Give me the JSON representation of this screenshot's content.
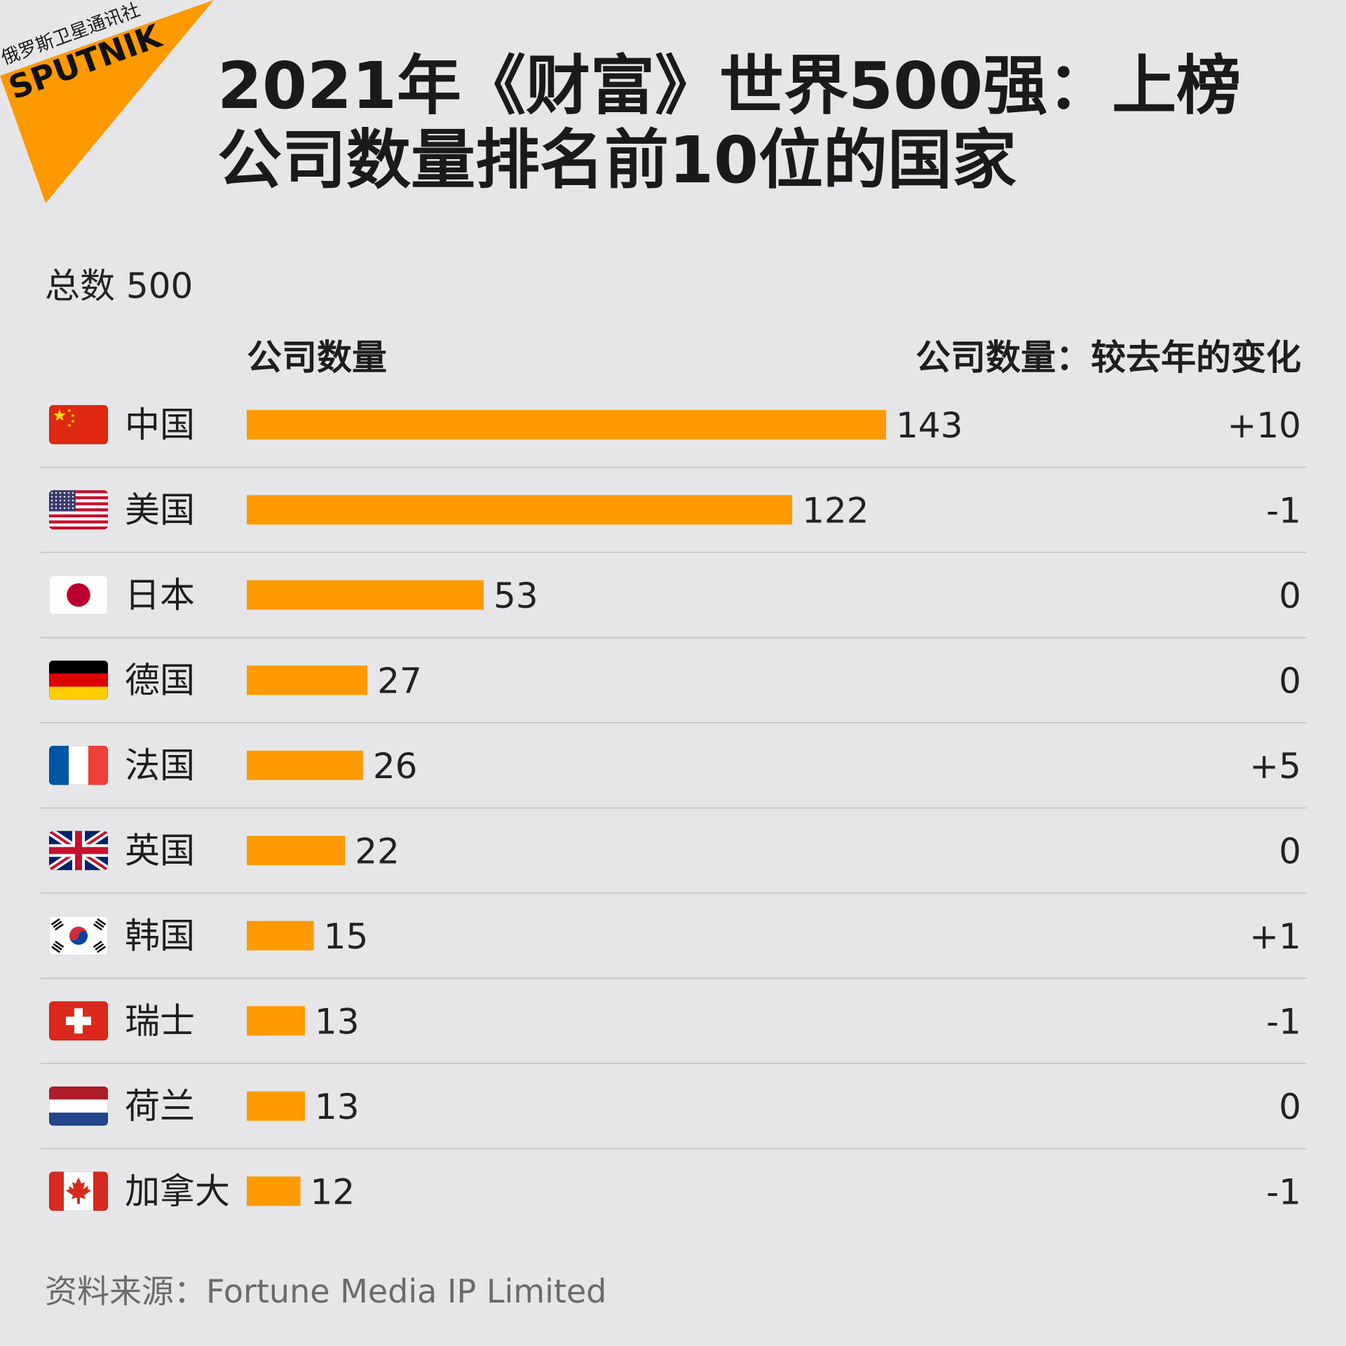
{
  "brand": {
    "tagline": "俄罗斯卫星通讯社",
    "name": "SPUTNIK",
    "color": "#ff9900"
  },
  "title_lines": [
    "2021年《财富》世界500强：上榜",
    "公司数量排名前10位的国家"
  ],
  "total_label": "总数 500",
  "columns": {
    "count": "公司数量",
    "change": "公司数量：较去年的变化"
  },
  "source": "资料来源：Fortune Media IP Limited",
  "chart_data": {
    "type": "bar",
    "orientation": "horizontal",
    "bar_color": "#ff9a00",
    "categories": [
      "中国",
      "美国",
      "日本",
      "德国",
      "法国",
      "英国",
      "韩国",
      "瑞士",
      "荷兰",
      "加拿大"
    ],
    "flags": [
      "flag-china",
      "flag-usa",
      "flag-japan",
      "flag-germany",
      "flag-france",
      "flag-uk",
      "flag-korea",
      "flag-switzerland",
      "flag-netherlands",
      "flag-canada"
    ],
    "values": [
      143,
      122,
      53,
      27,
      26,
      22,
      15,
      13,
      13,
      12
    ],
    "value_labels": [
      "143",
      "122",
      "53",
      "27",
      "26",
      "22",
      "15",
      "13",
      "13",
      "12"
    ],
    "change_labels": [
      "+10",
      "-1",
      "0",
      "0",
      "+5",
      "0",
      "+1",
      "-1",
      "0",
      "-1"
    ],
    "xlim": [
      0,
      143
    ],
    "grid": false,
    "legend": "none"
  }
}
